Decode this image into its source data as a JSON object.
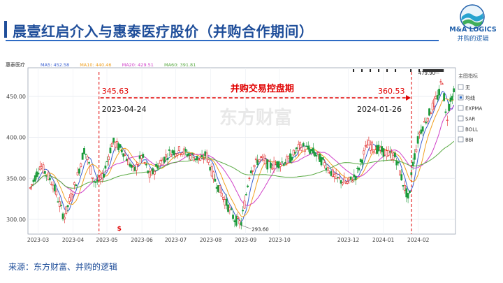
{
  "slide": {
    "title": "晨壹红启介入与惠泰医疗股价（并购合作期间）",
    "source": "来源：东方财富、并购的逻辑"
  },
  "logo": {
    "name": "M&A LOGICS",
    "subtitle": "并购的逻辑"
  },
  "colors": {
    "title": "#1f4e9a",
    "rule": "#2e6bc4",
    "candle_up": "#e02222",
    "candle_down": "#1a9a3a",
    "ma5": "#3a5fd0",
    "ma10": "#f0a020",
    "ma20": "#d040c8",
    "ma60": "#5aaa44",
    "annotation": "#e00000"
  },
  "chart_data": {
    "type": "candlestick",
    "stock_name": "惠泰医疗",
    "legend": [
      {
        "label": "MA5: 452.58",
        "color_key": "ma5"
      },
      {
        "label": "MA10: 440.46",
        "color_key": "ma10"
      },
      {
        "label": "MA20: 429.51",
        "color_key": "ma20"
      },
      {
        "label": "MA60: 391.81",
        "color_key": "ma60"
      }
    ],
    "y_ticks": [
      300,
      350,
      400,
      450
    ],
    "y_tick_labels": [
      "300.00",
      "350.00",
      "400.00",
      "450.00"
    ],
    "ylim": [
      282,
      485
    ],
    "x_labels": [
      "2023-03",
      "2023-04",
      "2023-05",
      "2023-06",
      "2023-07",
      "2023-08",
      "2023-09",
      "2023-10",
      "2023-12",
      "2024-01",
      "2024-02"
    ],
    "x_label_dates": [
      "2023-03-01",
      "2023-04-01",
      "2023-05-01",
      "2023-06-01",
      "2023-07-01",
      "2023-08-01",
      "2023-09-01",
      "2023-10-01",
      "2023-12-01",
      "2024-01-01",
      "2024-02-01"
    ],
    "xlim": [
      "2023-02-20",
      "2024-03-05"
    ],
    "annotations": {
      "period_label": "并购交易控盘期",
      "start_value": "345.63",
      "start_date": "2023-04-24",
      "end_value": "360.53",
      "end_date": "2024-01-26",
      "low_label": "293.60",
      "low_date": "2023-08-28",
      "low_value": 293.6,
      "high_label": "479.90",
      "high_date": "2024-02-22",
      "high_value": 479.9
    },
    "watermark": "东方财富",
    "side_panel": {
      "title": "主图指标",
      "options": [
        {
          "label": "无",
          "checked": false
        },
        {
          "label": "均线",
          "checked": true
        },
        {
          "label": "EXPMA",
          "checked": false
        },
        {
          "label": "SAR",
          "checked": false
        },
        {
          "label": "BOLL",
          "checked": false
        },
        {
          "label": "BBI",
          "checked": false
        }
      ]
    },
    "price_path": [
      [
        "2023-02-22",
        338
      ],
      [
        "2023-03-03",
        366
      ],
      [
        "2023-03-14",
        344
      ],
      [
        "2023-03-24",
        302
      ],
      [
        "2023-04-04",
        348
      ],
      [
        "2023-04-11",
        386
      ],
      [
        "2023-04-20",
        345
      ],
      [
        "2023-04-27",
        350
      ],
      [
        "2023-05-06",
        395
      ],
      [
        "2023-05-15",
        384
      ],
      [
        "2023-05-25",
        358
      ],
      [
        "2023-06-01",
        378
      ],
      [
        "2023-06-08",
        352
      ],
      [
        "2023-06-15",
        366
      ],
      [
        "2023-06-26",
        382
      ],
      [
        "2023-07-06",
        384
      ],
      [
        "2023-07-14",
        378
      ],
      [
        "2023-07-24",
        372
      ],
      [
        "2023-07-28",
        380
      ],
      [
        "2023-08-04",
        350
      ],
      [
        "2023-08-14",
        322
      ],
      [
        "2023-08-22",
        300
      ],
      [
        "2023-08-28",
        295
      ],
      [
        "2023-09-05",
        360
      ],
      [
        "2023-09-14",
        375
      ],
      [
        "2023-09-22",
        365
      ],
      [
        "2023-10-09",
        372
      ],
      [
        "2023-10-20",
        390
      ],
      [
        "2023-10-31",
        382
      ],
      [
        "2023-11-10",
        368
      ],
      [
        "2023-11-20",
        350
      ],
      [
        "2023-11-30",
        344
      ],
      [
        "2023-12-08",
        354
      ],
      [
        "2023-12-18",
        392
      ],
      [
        "2023-12-26",
        386
      ],
      [
        "2024-01-05",
        380
      ],
      [
        "2024-01-12",
        376
      ],
      [
        "2024-01-19",
        342
      ],
      [
        "2024-01-24",
        322
      ],
      [
        "2024-01-26",
        360
      ],
      [
        "2024-02-02",
        405
      ],
      [
        "2024-02-20",
        455
      ],
      [
        "2024-02-22",
        476
      ],
      [
        "2024-02-26",
        418
      ],
      [
        "2024-02-29",
        446
      ],
      [
        "2024-03-04",
        455
      ]
    ]
  }
}
